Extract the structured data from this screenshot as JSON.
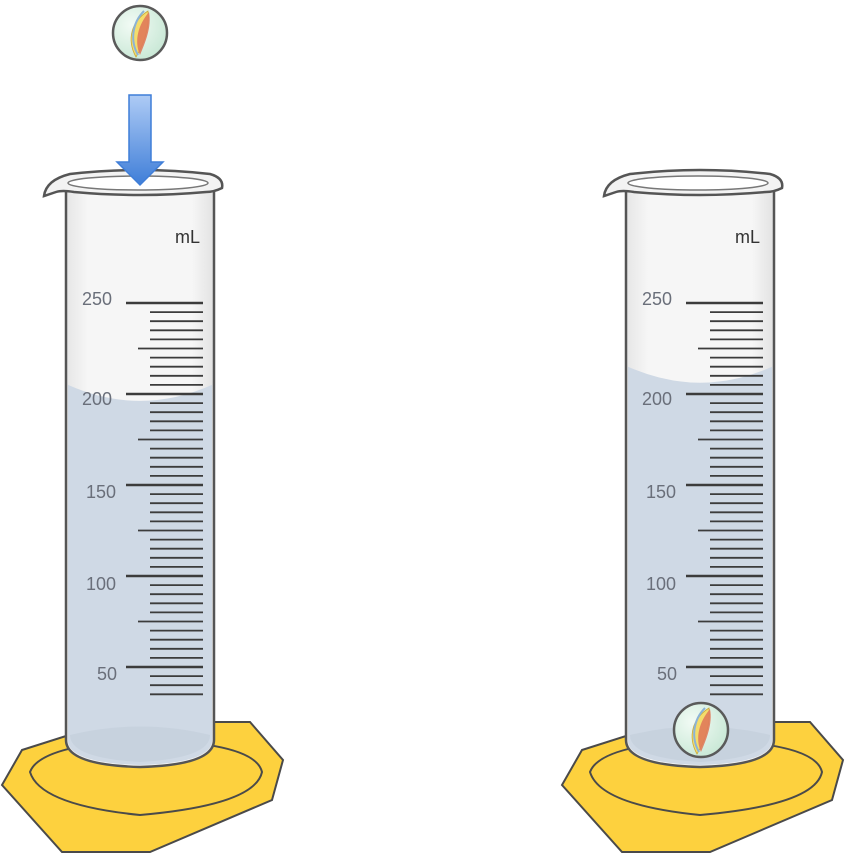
{
  "unit": "mL",
  "scale_labels": [
    "250",
    "200",
    "150",
    "100",
    "50"
  ],
  "scale_values": [
    250,
    200,
    150,
    100,
    50
  ],
  "cylinders": [
    {
      "id": "before",
      "liquid_level_ml": 205,
      "marble_inside": false
    },
    {
      "id": "after",
      "liquid_level_ml": 215,
      "marble_inside": true
    }
  ],
  "icons": {
    "marble": "marble-icon",
    "arrow": "down-arrow-icon",
    "base": "hexagon-base"
  },
  "colors": {
    "liquid": "#cfd9e5",
    "glass": "#f2f2f2",
    "outline": "#555555",
    "base": "#fdd13e",
    "base_stroke": "#4a4a4a",
    "arrow_top": "#aecbf5",
    "arrow_bottom": "#3f7ed8",
    "marble_fill": "#d9f0e2"
  }
}
